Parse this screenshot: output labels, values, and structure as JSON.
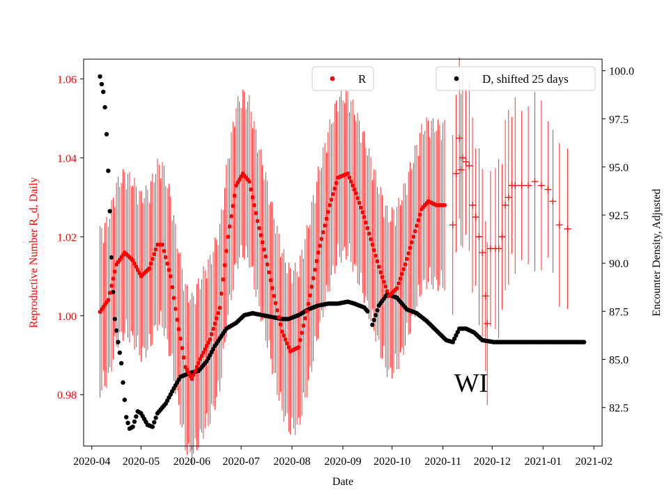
{
  "chart_data": {
    "type": "scatter",
    "state_label": "WI",
    "xlabel": "Date",
    "ylabel_left": "Reproductive Number R_d, Daily",
    "ylabel_right": "Encounter Density, Adjusted",
    "x_tick_labels": [
      "2020-04",
      "2020-05",
      "2020-06",
      "2020-07",
      "2020-08",
      "2020-09",
      "2020-10",
      "2020-11",
      "2020-12",
      "2021-01",
      "2021-02"
    ],
    "left_axis": {
      "range": [
        0.967,
        1.065
      ],
      "ticks": [
        0.98,
        1.0,
        1.02,
        1.04,
        1.06
      ],
      "tick_labels": [
        "0.98",
        "1.00",
        "1.02",
        "1.04",
        "1.06"
      ]
    },
    "right_axis": {
      "range": [
        80.5,
        100.6
      ],
      "ticks": [
        82.5,
        85.0,
        87.5,
        90.0,
        92.5,
        95.0,
        97.5,
        100.0
      ],
      "tick_labels": [
        "82.5",
        "85.0",
        "87.5",
        "90.0",
        "92.5",
        "95.0",
        "97.5",
        "100.0"
      ]
    },
    "x_range_days": [
      -5,
      311
    ],
    "legend": [
      {
        "label": "R",
        "color": "#ff0000",
        "position": "top-center"
      },
      {
        "label": "D, shifted 25 days",
        "color": "#000000",
        "position": "top-right"
      }
    ],
    "series_R": {
      "name": "R",
      "color": "#ff0000",
      "error_half_width": 0.019,
      "knots": [
        [
          5,
          1.001
        ],
        [
          10,
          1.004
        ],
        [
          15,
          1.013
        ],
        [
          20,
          1.016
        ],
        [
          25,
          1.014
        ],
        [
          30,
          1.01
        ],
        [
          35,
          1.012
        ],
        [
          40,
          1.018
        ],
        [
          43,
          1.018
        ],
        [
          48,
          1.01
        ],
        [
          52,
          0.999
        ],
        [
          57,
          0.987
        ],
        [
          61,
          0.984
        ],
        [
          66,
          0.989
        ],
        [
          72,
          0.994
        ],
        [
          78,
          1.002
        ],
        [
          83,
          1.02
        ],
        [
          88,
          1.033
        ],
        [
          92,
          1.036
        ],
        [
          96,
          1.034
        ],
        [
          101,
          1.024
        ],
        [
          106,
          1.015
        ],
        [
          111,
          1.005
        ],
        [
          116,
          0.996
        ],
        [
          121,
          0.991
        ],
        [
          126,
          0.992
        ],
        [
          132,
          1.003
        ],
        [
          138,
          1.016
        ],
        [
          145,
          1.028
        ],
        [
          150,
          1.035
        ],
        [
          156,
          1.036
        ],
        [
          161,
          1.031
        ],
        [
          166,
          1.025
        ],
        [
          171,
          1.018
        ],
        [
          176,
          1.011
        ],
        [
          181,
          1.005
        ],
        [
          186,
          1.007
        ],
        [
          191,
          1.013
        ],
        [
          196,
          1.02
        ],
        [
          201,
          1.027
        ],
        [
          205,
          1.029
        ],
        [
          210,
          1.028
        ],
        [
          215,
          1.028
        ]
      ],
      "outliers": [
        [
          220,
          1.023
        ],
        [
          222,
          1.036
        ],
        [
          224,
          1.045
        ],
        [
          225,
          1.037
        ],
        [
          226,
          1.04
        ],
        [
          228,
          1.039
        ],
        [
          230,
          1.038
        ],
        [
          232,
          1.028
        ],
        [
          234,
          1.025
        ],
        [
          236,
          1.02
        ],
        [
          238,
          1.016
        ],
        [
          240,
          1.005
        ],
        [
          241,
          0.998
        ],
        [
          243,
          1.017
        ],
        [
          246,
          1.017
        ],
        [
          248,
          1.017
        ],
        [
          250,
          1.02
        ],
        [
          252,
          1.028
        ],
        [
          254,
          1.03
        ],
        [
          256,
          1.033
        ],
        [
          258,
          1.033
        ],
        [
          262,
          1.033
        ],
        [
          266,
          1.033
        ],
        [
          270,
          1.034
        ],
        [
          274,
          1.033
        ],
        [
          278,
          1.032
        ],
        [
          281,
          1.029
        ],
        [
          285,
          1.023
        ],
        [
          290,
          1.022
        ]
      ]
    },
    "series_D": {
      "name": "D, shifted 25 days",
      "color": "#000000",
      "knots": [
        [
          5,
          99.7
        ],
        [
          6,
          99.3
        ],
        [
          7,
          98.9
        ],
        [
          8,
          98.1
        ],
        [
          9,
          96.7
        ],
        [
          10,
          94.8
        ],
        [
          11,
          92.7
        ],
        [
          12,
          90.3
        ],
        [
          13,
          88.5
        ],
        [
          14,
          87.1
        ],
        [
          16,
          85.9
        ],
        [
          18,
          84.8
        ],
        [
          19,
          83.8
        ],
        [
          20,
          82.9
        ],
        [
          21,
          82.0
        ],
        [
          23,
          81.4
        ],
        [
          25,
          81.5
        ],
        [
          28,
          82.3
        ],
        [
          30,
          82.2
        ],
        [
          34,
          81.6
        ],
        [
          37,
          81.5
        ],
        [
          40,
          82.2
        ],
        [
          45,
          82.7
        ],
        [
          50,
          83.5
        ],
        [
          54,
          84.1
        ],
        [
          60,
          84.3
        ],
        [
          65,
          84.4
        ],
        [
          70,
          84.9
        ],
        [
          75,
          85.7
        ],
        [
          82,
          86.6
        ],
        [
          88,
          86.9
        ],
        [
          93,
          87.3
        ],
        [
          98,
          87.4
        ],
        [
          104,
          87.3
        ],
        [
          110,
          87.2
        ],
        [
          116,
          87.1
        ],
        [
          120,
          87.1
        ],
        [
          126,
          87.3
        ],
        [
          132,
          87.6
        ],
        [
          138,
          87.8
        ],
        [
          144,
          87.9
        ],
        [
          150,
          87.9
        ],
        [
          156,
          88.0
        ],
        [
          160,
          87.9
        ],
        [
          166,
          87.7
        ],
        [
          168,
          87.5
        ],
        [
          171,
          86.8
        ],
        [
          175,
          87.8
        ],
        [
          180,
          88.4
        ],
        [
          186,
          88.2
        ],
        [
          192,
          87.6
        ],
        [
          198,
          87.4
        ],
        [
          204,
          87.0
        ],
        [
          210,
          86.5
        ],
        [
          216,
          86.0
        ],
        [
          220,
          85.9
        ],
        [
          224,
          86.6
        ],
        [
          228,
          86.6
        ],
        [
          233,
          86.4
        ],
        [
          238,
          86.0
        ],
        [
          245,
          85.9
        ],
        [
          260,
          85.9
        ],
        [
          275,
          85.9
        ],
        [
          300,
          85.9
        ]
      ]
    }
  }
}
